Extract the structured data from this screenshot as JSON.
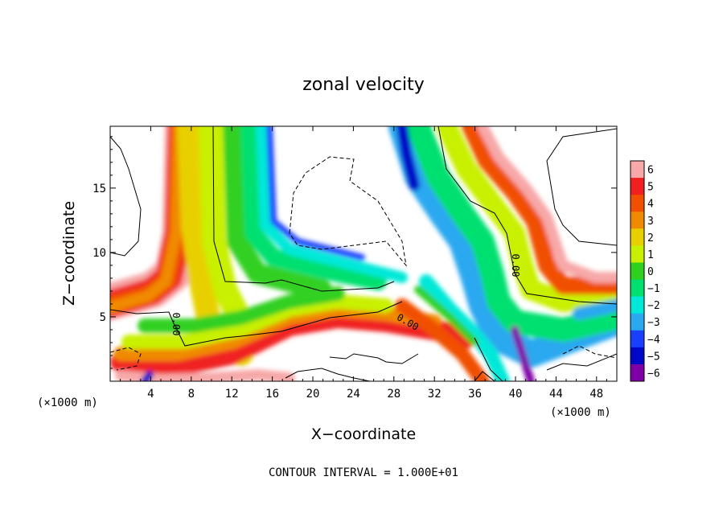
{
  "chart_data": {
    "type": "heatmap",
    "title": "zonal velocity",
    "xlabel": "X−coordinate",
    "ylabel": "Z−coordinate",
    "x_unit_left": "(×1000 m)",
    "x_unit_right": "(×1000 m)",
    "footer": "CONTOUR INTERVAL = 1.000E+01",
    "xlim": [
      0,
      50
    ],
    "ylim": [
      0,
      19.8
    ],
    "xticks": [
      "4",
      "8",
      "12",
      "16",
      "20",
      "24",
      "28",
      "32",
      "36",
      "40",
      "44",
      "48"
    ],
    "xtick_values": [
      4,
      8,
      12,
      16,
      20,
      24,
      28,
      32,
      36,
      40,
      44,
      48
    ],
    "yticks": [
      "5",
      "10",
      "15"
    ],
    "ytick_values": [
      5,
      10,
      15
    ],
    "colorbar": {
      "range": [
        -6,
        6
      ],
      "labels": [
        "6",
        "5",
        "4",
        "3",
        "2",
        "1",
        "0",
        "−1",
        "−2",
        "−3",
        "−4",
        "−5",
        "−6"
      ],
      "values": [
        6,
        5,
        4,
        3,
        2,
        1,
        0,
        -1,
        -2,
        -3,
        -4,
        -5,
        -6
      ],
      "colors": [
        "#f7a8a8",
        "#f02020",
        "#f05000",
        "#f08a00",
        "#e8d000",
        "#c8f000",
        "#30d020",
        "#00e070",
        "#00e8d8",
        "#2aa8f0",
        "#1a40ff",
        "#0008c8",
        "#8000a8"
      ]
    },
    "contour_labels": [
      "0.00",
      "0.00",
      "0.00"
    ]
  }
}
